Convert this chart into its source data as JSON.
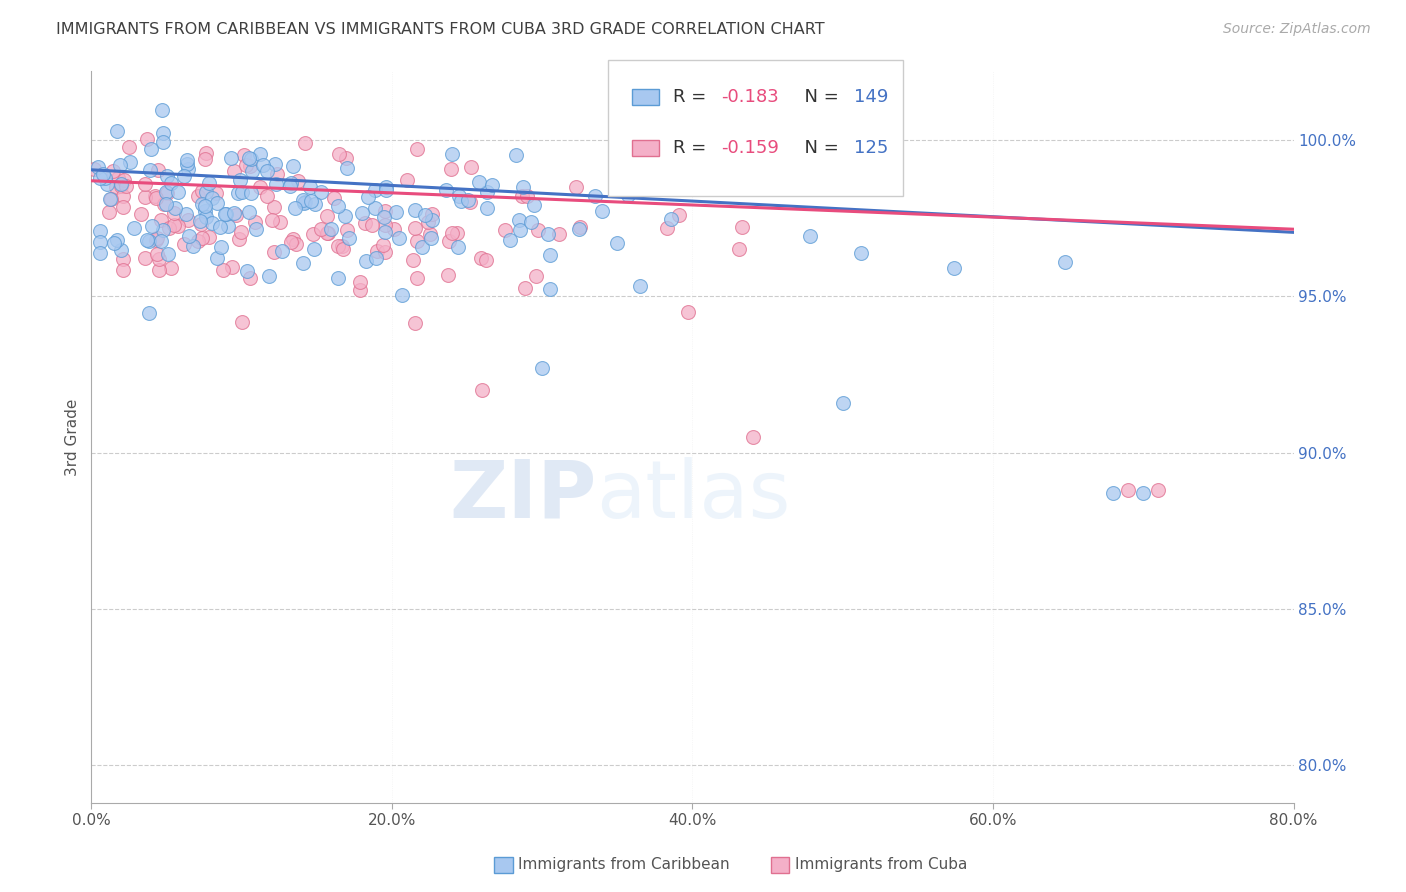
{
  "title": "IMMIGRANTS FROM CARIBBEAN VS IMMIGRANTS FROM CUBA 3RD GRADE CORRELATION CHART",
  "source_text": "Source: ZipAtlas.com",
  "ylabel": "3rd Grade",
  "xlim": [
    0.0,
    0.8
  ],
  "ylim": [
    0.788,
    1.022
  ],
  "ytick_labels": [
    "80.0%",
    "85.0%",
    "90.0%",
    "95.0%",
    "100.0%"
  ],
  "ytick_values": [
    0.8,
    0.85,
    0.9,
    0.95,
    1.0
  ],
  "xtick_labels": [
    "0.0%",
    "20.0%",
    "40.0%",
    "60.0%",
    "80.0%"
  ],
  "xtick_values": [
    0.0,
    0.2,
    0.4,
    0.6,
    0.8
  ],
  "series1_color": "#a8c8f0",
  "series1_edge_color": "#5b9bd5",
  "series2_color": "#f4b0c8",
  "series2_edge_color": "#e07090",
  "trendline1_color": "#4472c4",
  "trendline2_color": "#e84c7d",
  "legend_R1": "-0.183",
  "legend_N1": "149",
  "legend_R2": "-0.159",
  "legend_N2": "125",
  "R1": -0.183,
  "R2": -0.159,
  "watermark_zip": "ZIP",
  "watermark_atlas": "atlas",
  "background_color": "#ffffff",
  "grid_color": "#cccccc",
  "title_color": "#404040",
  "right_axis_color": "#4472c4",
  "n1": 149,
  "n2": 125,
  "marker_size": 100,
  "trendline1_y0": 0.9905,
  "trendline1_y1": 0.9705,
  "trendline2_y0": 0.987,
  "trendline2_y1": 0.9715
}
